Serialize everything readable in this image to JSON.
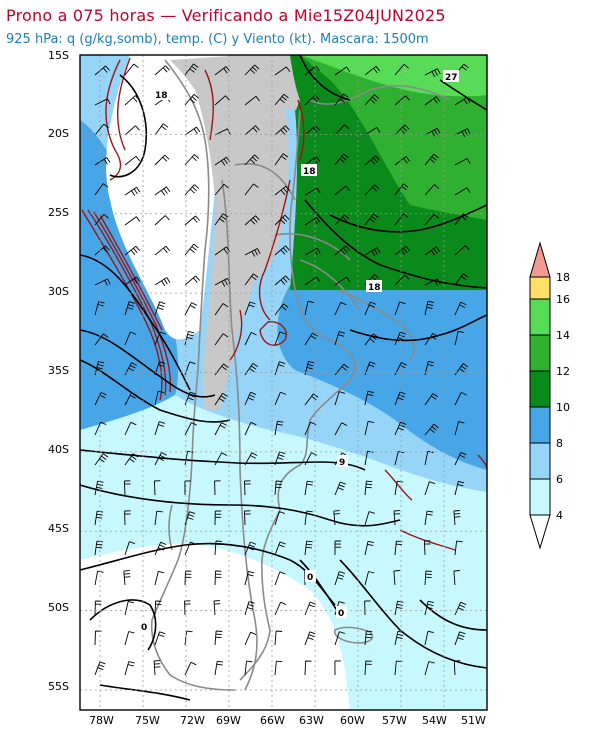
{
  "header": {
    "title": "Prono a 075 horas — Verificando a Mie15Z04JUN2025",
    "subtitle": "925 hPa: q (g/kg,somb), temp. (C) y Viento (kt). Mascara: 1500m"
  },
  "axes": {
    "lat_ticks": [
      "15S",
      "20S",
      "25S",
      "30S",
      "35S",
      "40S",
      "45S",
      "50S",
      "55S"
    ],
    "lon_ticks": [
      "78W",
      "75W",
      "72W",
      "69W",
      "66W",
      "63W",
      "60W",
      "57W",
      "54W",
      "51W"
    ]
  },
  "colorbar": {
    "levels": [
      "4",
      "6",
      "8",
      "10",
      "12",
      "14",
      "16",
      "18"
    ],
    "colors": [
      "#ffffff",
      "#c8f8ff",
      "#96d4f8",
      "#46a6e8",
      "#0a8a1a",
      "#2fb030",
      "#58dc58",
      "#ffe066",
      "#f29a90"
    ]
  },
  "contour_labels": [
    "18",
    "18",
    "27",
    "18",
    "9",
    "0",
    "0",
    "0"
  ],
  "mask": {
    "color": "#c8c8c8",
    "label": "1500m"
  }
}
